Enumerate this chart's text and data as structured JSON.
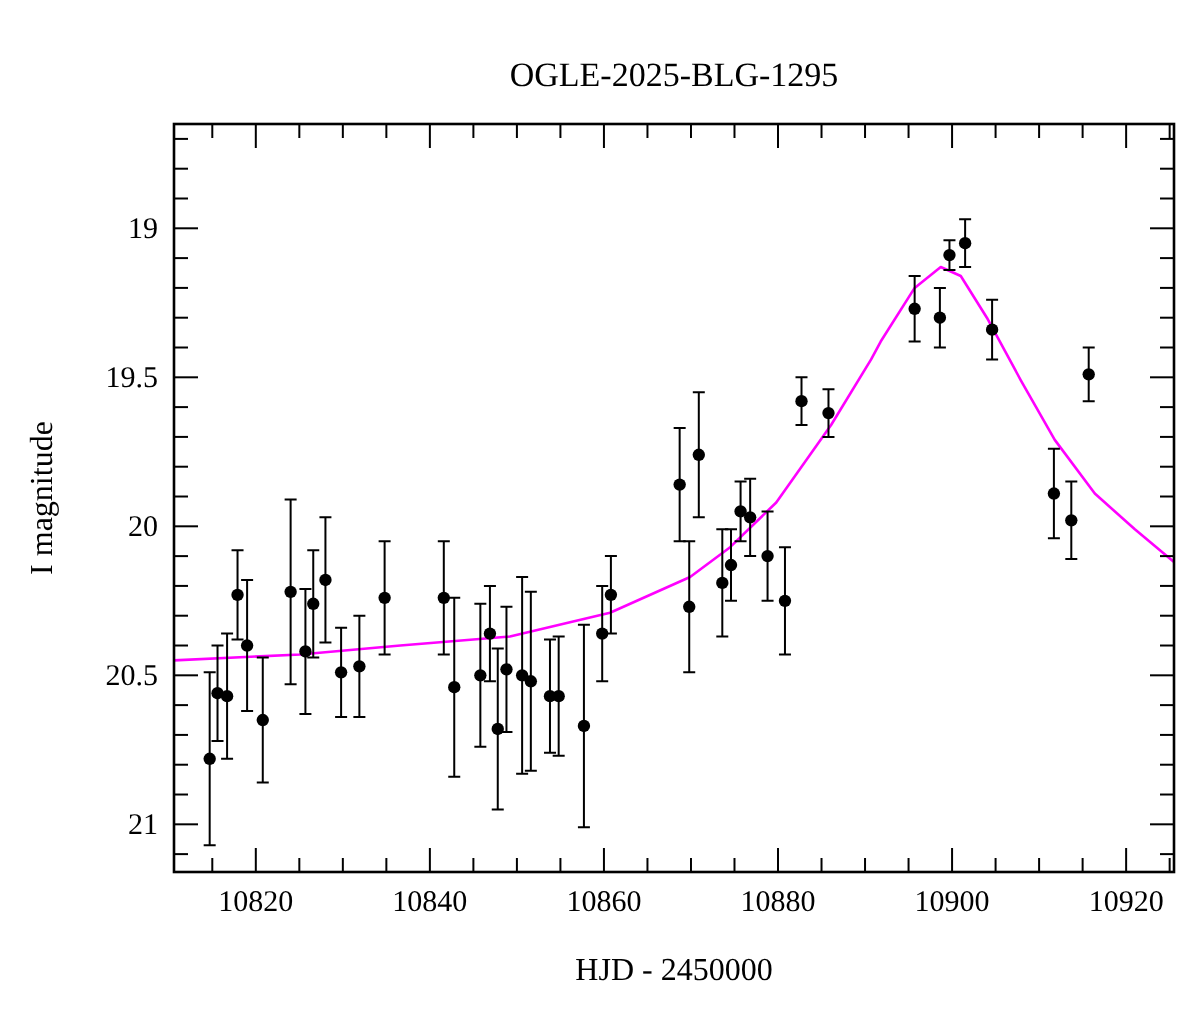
{
  "chart_data": {
    "type": "scatter",
    "title": "OGLE-2025-BLG-1295",
    "xlabel": "HJD - 2450000",
    "ylabel": "I magnitude",
    "xlim": [
      10810.6,
      10925.5
    ],
    "ylim": [
      21.16,
      18.65
    ],
    "xticks": [
      {
        "value": 10815,
        "label": null
      },
      10820,
      {
        "value": 10825,
        "label": null
      },
      {
        "value": 10830,
        "label": null
      },
      {
        "value": 10835,
        "label": null
      },
      10840,
      {
        "value": 10845,
        "label": null
      },
      {
        "value": 10850,
        "label": null
      },
      {
        "value": 10855,
        "label": null
      },
      10860,
      {
        "value": 10865,
        "label": null
      },
      {
        "value": 10870,
        "label": null
      },
      {
        "value": 10875,
        "label": null
      },
      10880,
      {
        "value": 10885,
        "label": null
      },
      {
        "value": 10890,
        "label": null
      },
      {
        "value": 10895,
        "label": null
      },
      10900,
      {
        "value": 10905,
        "label": null
      },
      {
        "value": 10910,
        "label": null
      },
      {
        "value": 10915,
        "label": null
      },
      10920,
      {
        "value": 10925,
        "label": null
      }
    ],
    "yticks": [
      {
        "value": 18.7,
        "label": null
      },
      {
        "value": 18.8,
        "label": null
      },
      {
        "value": 18.9,
        "label": null
      },
      19,
      {
        "value": 19.1,
        "label": null
      },
      {
        "value": 19.2,
        "label": null
      },
      {
        "value": 19.3,
        "label": null
      },
      {
        "value": 19.4,
        "label": null
      },
      19.5,
      {
        "value": 19.6,
        "label": null
      },
      {
        "value": 19.7,
        "label": null
      },
      {
        "value": 19.8,
        "label": null
      },
      {
        "value": 19.9,
        "label": null
      },
      20,
      {
        "value": 20.1,
        "label": null
      },
      {
        "value": 20.2,
        "label": null
      },
      {
        "value": 20.3,
        "label": null
      },
      {
        "value": 20.4,
        "label": null
      },
      20.5,
      {
        "value": 20.6,
        "label": null
      },
      {
        "value": 20.7,
        "label": null
      },
      {
        "value": 20.8,
        "label": null
      },
      {
        "value": 20.9,
        "label": null
      },
      21,
      {
        "value": 21.1,
        "label": null
      }
    ],
    "grid": false,
    "series": [
      {
        "type": "line",
        "color": "#ff00ff",
        "marker": "none",
        "line_style": "solid",
        "x": [
          10810.6,
          10825.1,
          10836.6,
          10849.2,
          10860.7,
          10869.9,
          10874.5,
          10879.8,
          10886.1,
          10890.7,
          10891.8,
          10895.7,
          10898.7,
          10901.0,
          10904.0,
          10907.9,
          10911.8,
          10916.4,
          10921.0,
          10925.5
        ],
        "values": [
          20.45,
          20.43,
          20.4,
          20.37,
          20.29,
          20.17,
          20.07,
          19.92,
          19.66,
          19.44,
          19.38,
          19.2,
          19.13,
          19.16,
          19.3,
          19.51,
          19.71,
          19.89,
          20.01,
          20.12
        ]
      },
      {
        "type": "scatter",
        "color": "#000000",
        "marker": "circle",
        "x": [
          10814.7,
          10815.6,
          10816.7,
          10817.9,
          10819.0,
          10820.8,
          10824.0,
          10825.7,
          10826.6,
          10828.0,
          10829.8,
          10831.9,
          10834.8,
          10841.6,
          10842.8,
          10845.8,
          10846.9,
          10847.8,
          10848.8,
          10850.6,
          10851.6,
          10853.8,
          10854.8,
          10857.7,
          10859.8,
          10860.8,
          10868.7,
          10869.8,
          10870.9,
          10873.6,
          10874.6,
          10875.7,
          10876.8,
          10878.8,
          10880.8,
          10882.7,
          10885.8,
          10895.7,
          10898.6,
          10899.7,
          10901.5,
          10904.6,
          10911.7,
          10913.7,
          10915.7
        ],
        "values": [
          20.78,
          20.56,
          20.57,
          20.23,
          20.4,
          20.65,
          20.22,
          20.42,
          20.26,
          20.18,
          20.49,
          20.47,
          20.24,
          20.24,
          20.54,
          20.5,
          20.36,
          20.68,
          20.48,
          20.5,
          20.52,
          20.57,
          20.57,
          20.67,
          20.36,
          20.23,
          19.86,
          20.27,
          19.76,
          20.19,
          20.13,
          19.95,
          19.97,
          20.1,
          20.25,
          19.58,
          19.62,
          19.27,
          19.3,
          19.09,
          19.05,
          19.34,
          19.89,
          19.98,
          19.49
        ],
        "errors": [
          0.29,
          0.16,
          0.21,
          0.15,
          0.22,
          0.21,
          0.31,
          0.21,
          0.18,
          0.21,
          0.15,
          0.17,
          0.19,
          0.19,
          0.3,
          0.24,
          0.16,
          0.27,
          0.21,
          0.33,
          0.3,
          0.19,
          0.2,
          0.34,
          0.16,
          0.13,
          0.19,
          0.22,
          0.21,
          0.18,
          0.12,
          0.1,
          0.13,
          0.15,
          0.18,
          0.08,
          0.08,
          0.11,
          0.1,
          0.05,
          0.08,
          0.1,
          0.15,
          0.13,
          0.09
        ]
      }
    ]
  }
}
